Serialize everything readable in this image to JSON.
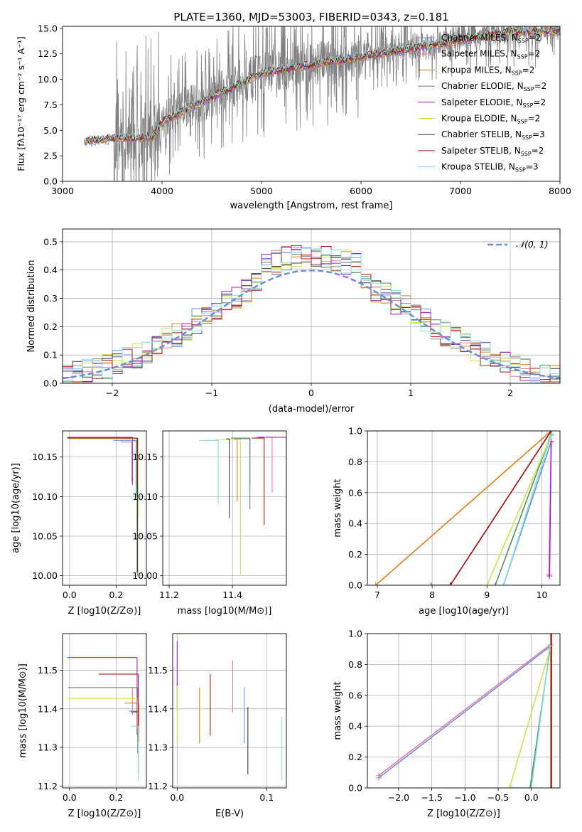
{
  "figure": {
    "title": "PLATE=1360, MJD=53003, FIBERID=0343, z=0.181"
  },
  "models": [
    {
      "name": "Chabrier MILES",
      "nssp": "2",
      "color": "#6f8fd6"
    },
    {
      "name": "Salpeter MILES",
      "nssp": "2",
      "color": "#e77ba6"
    },
    {
      "name": "Kroupa MILES",
      "nssp": "2",
      "color": "#e07b1e"
    },
    {
      "name": "Chabrier ELODIE",
      "nssp": "2",
      "color": "#5a8f5a"
    },
    {
      "name": "Salpeter ELODIE",
      "nssp": "2",
      "color": "#a020c8"
    },
    {
      "name": "Kroupa ELODIE",
      "nssp": "2",
      "color": "#c8e64e"
    },
    {
      "name": "Chabrier STELIB",
      "nssp": "3",
      "color": "#3a3a3a"
    },
    {
      "name": "Salpeter STELIB",
      "nssp": "2",
      "color": "#b01818"
    },
    {
      "name": "Kroupa STELIB",
      "nssp": "3",
      "color": "#80dede"
    }
  ],
  "chart_data": [
    {
      "id": "spectrum",
      "type": "line",
      "xlabel": "wavelength [Angstrom, rest frame]",
      "ylabel": "Flux [f_λ 10^-17 erg cm^-2 s^-1 A^-1]",
      "xlim": [
        3000,
        8000
      ],
      "ylim": [
        0,
        15.2
      ],
      "xticks": [
        3000,
        4000,
        5000,
        6000,
        7000,
        8000
      ],
      "yticks": [
        0.0,
        2.5,
        5.0,
        7.5,
        10.0,
        12.5,
        15.0
      ],
      "legend": "top-right",
      "data_series": {
        "name": "data",
        "color": "#808080",
        "continuum": [
          [
            3220,
            3.9
          ],
          [
            3500,
            4.2
          ],
          [
            3900,
            4.6
          ],
          [
            4000,
            6.0
          ],
          [
            4300,
            7.5
          ],
          [
            4600,
            8.8
          ],
          [
            5000,
            10.6
          ],
          [
            5500,
            11.5
          ],
          [
            6000,
            12.3
          ],
          [
            6500,
            13.0
          ],
          [
            6800,
            13.6
          ],
          [
            7000,
            14.0
          ],
          [
            7500,
            14.7
          ],
          [
            8000,
            14.8
          ]
        ]
      },
      "model_continuum": [
        [
          3220,
          3.9
        ],
        [
          3500,
          4.2
        ],
        [
          3900,
          4.3
        ],
        [
          4000,
          5.8
        ],
        [
          4300,
          7.3
        ],
        [
          4600,
          8.7
        ],
        [
          5000,
          10.6
        ],
        [
          5500,
          11.4
        ],
        [
          6000,
          12.2
        ],
        [
          6500,
          13.0
        ],
        [
          6800,
          13.5
        ],
        [
          7000,
          13.9
        ],
        [
          7500,
          14.6
        ],
        [
          8000,
          14.7
        ]
      ]
    },
    {
      "id": "residual-histogram",
      "type": "step",
      "xlabel": "(data-model)/error",
      "ylabel": "Normed distribution",
      "xlim": [
        -2.5,
        2.5
      ],
      "ylim": [
        0,
        0.545
      ],
      "xticks": [
        -2,
        -1,
        0,
        1,
        2
      ],
      "yticks": [
        0.0,
        0.1,
        0.2,
        0.3,
        0.4,
        0.5
      ],
      "legend": "top-right",
      "reference": {
        "label": "𝒩(0, 1)",
        "mean": 0,
        "sigma": 1
      },
      "bin_width": 0.1
    },
    {
      "id": "age-vs-Z",
      "type": "scatter",
      "xlabel": "Z [log10(Z/Z⊙)]",
      "ylabel": "age [log10(age/yr)]",
      "xlim": [
        -0.03,
        0.33
      ],
      "ylim": [
        9.988,
        10.183
      ],
      "xticks": [
        0.0,
        0.2
      ],
      "yticks": [
        10.0,
        10.05,
        10.1,
        10.15
      ],
      "points": [
        {
          "x": 0.288,
          "y": 10.171,
          "xerr_lo": 0.1,
          "yerr_lo": 0.07
        },
        {
          "x": 0.268,
          "y": 10.169,
          "xerr_lo": 0.05,
          "yerr_lo": 0.05
        },
        {
          "x": 0.292,
          "y": 10.174,
          "xerr_lo": 0.15,
          "yerr_lo": 0.174
        },
        {
          "x": 0.29,
          "y": 10.174,
          "xerr_lo": 0.26,
          "yerr_lo": 0.17
        },
        {
          "x": 0.27,
          "y": 10.175,
          "xerr_lo": 0.28,
          "yerr_lo": 0.06
        },
        {
          "x": 0.294,
          "y": 10.173,
          "xerr_lo": 0.3,
          "yerr_lo": 0.1
        },
        {
          "x": 0.292,
          "y": 10.174,
          "xerr_lo": 0.05,
          "yerr_lo": 0.17
        },
        {
          "x": 0.291,
          "y": 10.174,
          "xerr_lo": 0.3,
          "yerr_lo": 0.06
        },
        {
          "x": 0.285,
          "y": 10.17,
          "xerr_lo": 0.01,
          "yerr_lo": 0.07
        }
      ]
    },
    {
      "id": "age-vs-mass",
      "type": "scatter",
      "xlabel": "mass [log10(M/M⊙)]",
      "ylabel": "",
      "xlim": [
        11.18,
        11.57
      ],
      "ylim": [
        9.988,
        10.183
      ],
      "xticks": [
        11.2,
        11.4
      ],
      "yticks": [
        10.0,
        10.05,
        10.1,
        10.15
      ],
      "points": [
        {
          "x": 11.455,
          "y": 10.173,
          "xerr_lo": 0.05,
          "yerr_lo": 0.06
        },
        {
          "x": 11.525,
          "y": 10.175,
          "xerr_lo": 0.05,
          "yerr_lo": 0.07
        },
        {
          "x": 11.415,
          "y": 10.174,
          "xerr_lo": 0.01,
          "yerr_lo": 0.08
        },
        {
          "x": 11.455,
          "y": 10.174,
          "xerr_lo": 0.06,
          "yerr_lo": 0.09
        },
        {
          "x": 11.57,
          "y": 10.175,
          "xerr_lo": 0.09,
          "yerr_lo": 0.16
        },
        {
          "x": 11.425,
          "y": 10.172,
          "xerr_lo": 0.08,
          "yerr_lo": 0.17
        },
        {
          "x": 11.39,
          "y": 10.173,
          "xerr_lo": 0.01,
          "yerr_lo": 0.1
        },
        {
          "x": 11.5,
          "y": 10.174,
          "xerr_lo": 0.04,
          "yerr_lo": 0.11
        },
        {
          "x": 11.355,
          "y": 10.171,
          "xerr_lo": 0.06,
          "yerr_lo": 0.08
        }
      ]
    },
    {
      "id": "weight-vs-age",
      "type": "line",
      "xlabel": "age [log10(age/yr)]",
      "ylabel": "mass weight",
      "xlim": [
        6.82,
        10.33
      ],
      "ylim": [
        0,
        1.0
      ],
      "xticks": [
        7,
        8,
        9,
        10
      ],
      "yticks": [
        0.0,
        0.2,
        0.4,
        0.6,
        0.8,
        1.0
      ],
      "series": [
        {
          "x": [
            9.3,
            10.17
          ],
          "y": [
            0.0,
            0.93
          ]
        },
        {
          "x": [
            10.13,
            10.17
          ],
          "y": [
            0.07,
            0.93
          ]
        },
        {
          "x": [
            6.97,
            10.17
          ],
          "y": [
            0.0,
            1.0
          ]
        },
        {
          "x": [
            9.15,
            10.17
          ],
          "y": [
            0.0,
            0.98
          ]
        },
        {
          "x": [
            10.14,
            10.17
          ],
          "y": [
            0.06,
            0.93
          ]
        },
        {
          "x": [
            9.0,
            10.17
          ],
          "y": [
            0.0,
            0.97
          ]
        },
        {
          "x": [
            7.98,
            8.33,
            10.17
          ],
          "y": [
            0.0,
            0.0,
            1.0
          ]
        },
        {
          "x": [
            8.33,
            10.17
          ],
          "y": [
            0.0,
            1.0
          ]
        },
        {
          "x": [
            9.3,
            10.17
          ],
          "y": [
            0.0,
            0.97
          ]
        }
      ]
    },
    {
      "id": "mass-vs-Z",
      "type": "scatter",
      "xlabel": "Z [log10(Z/Z⊙)]",
      "ylabel": "mass [log10(M/M⊙)]",
      "xlim": [
        -0.03,
        0.33
      ],
      "ylim": [
        11.195,
        11.595
      ],
      "xticks": [
        0.0,
        0.2
      ],
      "yticks": [
        11.2,
        11.3,
        11.4,
        11.5
      ],
      "points": [
        {
          "x": 0.295,
          "y": 11.394,
          "xerr_lo": 0.04,
          "yerr_lo": 0.08
        },
        {
          "x": 0.27,
          "y": 11.455,
          "xerr_lo": 0.01,
          "yerr_lo": 0.07
        },
        {
          "x": 0.297,
          "y": 11.415,
          "xerr_lo": 0.06,
          "yerr_lo": 0.1
        },
        {
          "x": 0.293,
          "y": 11.455,
          "xerr_lo": 0.3,
          "yerr_lo": 0.17
        },
        {
          "x": 0.29,
          "y": 11.533,
          "xerr_lo": 0.3,
          "yerr_lo": 0.2
        },
        {
          "x": 0.293,
          "y": 11.427,
          "xerr_lo": 0.3,
          "yerr_lo": 0.09
        },
        {
          "x": 0.295,
          "y": 11.392,
          "xerr_lo": 0.03,
          "yerr_lo": 0.16
        },
        {
          "x": 0.295,
          "y": 11.49,
          "xerr_lo": 0.17,
          "yerr_lo": 0.26
        },
        {
          "x": 0.295,
          "y": 11.355,
          "xerr_lo": 0.03,
          "yerr_lo": 0.14
        }
      ]
    },
    {
      "id": "mass-vs-ebv",
      "type": "scatter",
      "xlabel": "E(B-V)",
      "ylabel": "",
      "xlim": [
        -0.005,
        0.122
      ],
      "ylim": [
        11.195,
        11.595
      ],
      "xticks": [
        0.0,
        0.1
      ],
      "yticks": [
        11.2,
        11.3,
        11.4,
        11.5
      ],
      "points": [
        {
          "x": 0.075,
          "y": 11.31,
          "yerr": [
            11.31,
            11.455
          ]
        },
        {
          "x": 0.062,
          "y": 11.39,
          "yerr": [
            11.39,
            11.525
          ]
        },
        {
          "x": 0.025,
          "y": 11.31,
          "yerr": [
            11.31,
            11.455
          ]
        },
        {
          "x": 0.0,
          "y": 11.4,
          "yerr": [
            11.4,
            11.465
          ]
        },
        {
          "x": 0.0,
          "y": 11.46,
          "yerr": [
            11.46,
            11.575
          ]
        },
        {
          "x": 0.0,
          "y": 11.31,
          "yerr": [
            11.31,
            11.46
          ]
        },
        {
          "x": 0.079,
          "y": 11.23,
          "yerr": [
            11.23,
            11.405
          ]
        },
        {
          "x": 0.037,
          "y": 11.33,
          "yerr": [
            11.33,
            11.49
          ]
        },
        {
          "x": 0.117,
          "y": 11.215,
          "yerr": [
            11.215,
            11.38
          ]
        }
      ]
    },
    {
      "id": "weight-vs-Z",
      "type": "line",
      "xlabel": "Z [log10(Z/Z⊙)]",
      "ylabel": "mass weight",
      "xlim": [
        -2.47,
        0.43
      ],
      "ylim": [
        0,
        1.0
      ],
      "xticks": [
        -2.0,
        -1.5,
        -1.0,
        -0.5,
        0.0
      ],
      "yticks": [
        0.0,
        0.2,
        0.4,
        0.6,
        0.8,
        1.0
      ],
      "series": [
        {
          "x": [
            -2.3,
            0.29
          ],
          "y": [
            0.065,
            0.92
          ]
        },
        {
          "x": [
            -2.3,
            0.29
          ],
          "y": [
            0.08,
            0.93
          ]
        },
        {
          "x": [
            0.29,
            0.29
          ],
          "y": [
            0.0,
            1.0
          ]
        },
        {
          "x": [
            -0.02,
            0.28
          ],
          "y": [
            0.0,
            0.9
          ]
        },
        {
          "x": [
            0.3,
            0.3
          ],
          "y": [
            0.0,
            1.0
          ]
        },
        {
          "x": [
            -0.33,
            0.28
          ],
          "y": [
            0.0,
            0.9
          ]
        },
        {
          "x": [
            0.3,
            0.3
          ],
          "y": [
            0.0,
            1.0
          ]
        },
        {
          "x": [
            0.3,
            0.3
          ],
          "y": [
            0.0,
            1.0
          ]
        },
        {
          "x": [
            -0.3,
            0.0,
            0.28
          ],
          "y": [
            0.0,
            0.0,
            0.92
          ]
        }
      ]
    }
  ]
}
